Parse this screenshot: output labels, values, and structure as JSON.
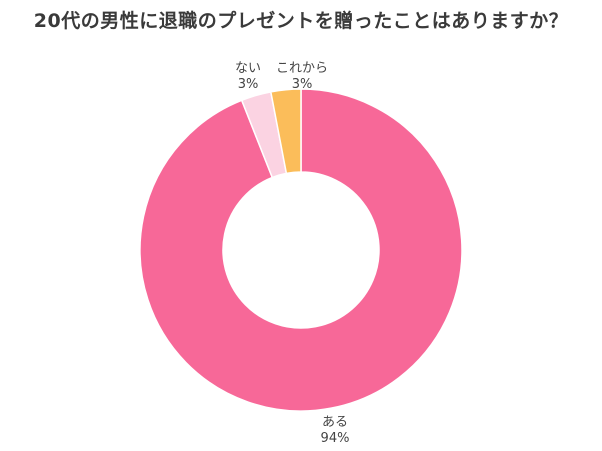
{
  "chart_data": {
    "type": "pie",
    "title": "20代の男性に退職のプレゼントを贈ったことはありますか？",
    "donut": true,
    "categories": [
      "ある",
      "ない",
      "これから"
    ],
    "values": [
      94,
      3,
      3
    ],
    "value_labels": [
      "94%",
      "3%",
      "3%"
    ],
    "colors": [
      "#f76898",
      "#fbd3e2",
      "#fbbd5a"
    ],
    "legend": "none"
  }
}
